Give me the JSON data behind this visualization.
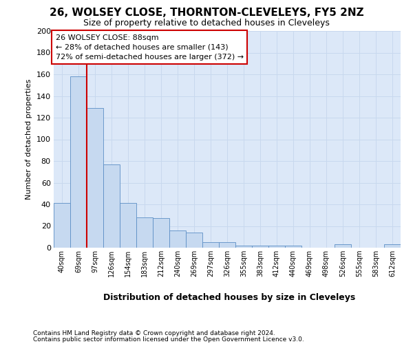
{
  "title1": "26, WOLSEY CLOSE, THORNTON-CLEVELEYS, FY5 2NZ",
  "title2": "Size of property relative to detached houses in Cleveleys",
  "xlabel": "Distribution of detached houses by size in Cleveleys",
  "ylabel": "Number of detached properties",
  "categories": [
    "40sqm",
    "69sqm",
    "97sqm",
    "126sqm",
    "154sqm",
    "183sqm",
    "212sqm",
    "240sqm",
    "269sqm",
    "297sqm",
    "326sqm",
    "355sqm",
    "383sqm",
    "412sqm",
    "440sqm",
    "469sqm",
    "498sqm",
    "526sqm",
    "555sqm",
    "583sqm",
    "612sqm"
  ],
  "values": [
    41,
    158,
    129,
    77,
    41,
    28,
    27,
    16,
    14,
    5,
    5,
    2,
    2,
    2,
    2,
    0,
    0,
    3,
    0,
    0,
    3
  ],
  "bar_color": "#c6d9f0",
  "bar_edge_color": "#5b8ec5",
  "ylim_max": 200,
  "yticks": [
    0,
    20,
    40,
    60,
    80,
    100,
    120,
    140,
    160,
    180,
    200
  ],
  "vline_color": "#cc0000",
  "vline_x": 1.5,
  "annotation_line1": "26 WOLSEY CLOSE: 88sqm",
  "annotation_line2": "← 28% of detached houses are smaller (143)",
  "annotation_line3": "72% of semi-detached houses are larger (372) →",
  "box_facecolor": "white",
  "box_edgecolor": "#cc0000",
  "grid_color": "#c8d8ee",
  "bg_color": "#dce8f8",
  "title1_fontsize": 11,
  "title2_fontsize": 9,
  "xlabel_fontsize": 9,
  "ylabel_fontsize": 8,
  "tick_fontsize": 7,
  "annot_fontsize": 8,
  "footnote1": "Contains HM Land Registry data © Crown copyright and database right 2024.",
  "footnote2": "Contains public sector information licensed under the Open Government Licence v3.0.",
  "footnote_fontsize": 6.5
}
